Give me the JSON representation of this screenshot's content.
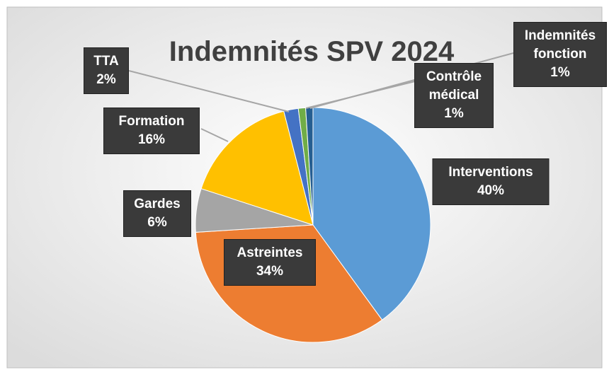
{
  "chart_data": {
    "type": "pie",
    "title": "Indemnités SPV 2024",
    "categories": [
      "Interventions",
      "Astreintes",
      "Gardes",
      "Formation",
      "TTA",
      "Contrôle médical",
      "Indemnités fonction"
    ],
    "values": [
      40,
      34,
      6,
      16,
      2,
      1,
      1
    ],
    "value_labels": [
      "40%",
      "34%",
      "6%",
      "16%",
      "2%",
      "1%",
      "1%"
    ],
    "colors": [
      "#5b9bd5",
      "#ed7d31",
      "#a5a5a5",
      "#ffc000",
      "#4472c4",
      "#70ad47",
      "#255e91"
    ]
  }
}
